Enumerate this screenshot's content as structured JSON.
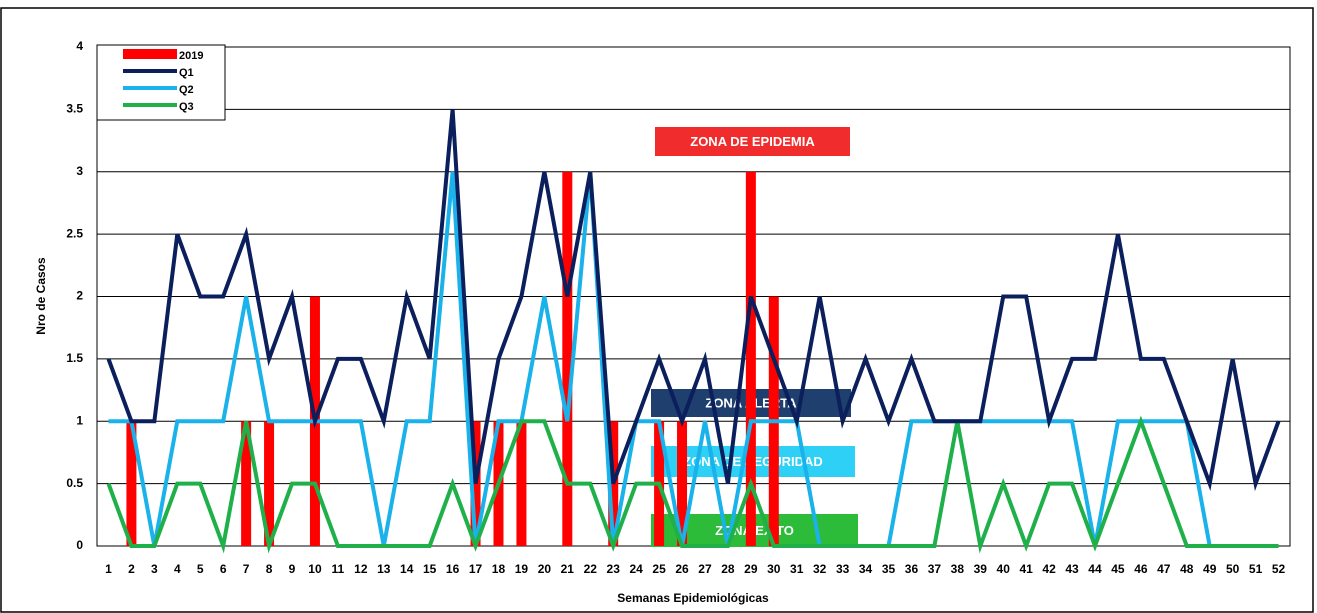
{
  "chart_data": {
    "type": "bar-line",
    "ylabel": "Nro de Casos",
    "xlabel": "Semanas Epidemiológicas",
    "categories": [
      "1",
      "2",
      "3",
      "4",
      "5",
      "6",
      "7",
      "8",
      "9",
      "10",
      "11",
      "12",
      "13",
      "14",
      "15",
      "16",
      "17",
      "18",
      "19",
      "20",
      "21",
      "22",
      "23",
      "24",
      "25",
      "26",
      "27",
      "28",
      "29",
      "30",
      "31",
      "32",
      "33",
      "34",
      "35",
      "36",
      "37",
      "38",
      "39",
      "40",
      "41",
      "42",
      "43",
      "44",
      "45",
      "46",
      "47",
      "48",
      "49",
      "50",
      "51",
      "52"
    ],
    "ylim": [
      0,
      4
    ],
    "yticks": [
      0,
      0.5,
      1,
      1.5,
      2,
      2.5,
      3,
      3.5,
      4
    ],
    "grid": true,
    "legend": "top-left",
    "series": [
      {
        "name": "2019",
        "kind": "bar",
        "color": "#ff0000",
        "values": [
          0,
          1,
          0,
          0,
          0,
          0,
          1,
          1,
          0,
          2,
          0,
          0,
          0,
          0,
          0,
          0,
          1,
          1,
          1,
          0,
          3,
          0,
          1,
          0,
          1,
          1,
          0,
          0,
          3,
          2,
          0,
          0,
          0,
          0,
          0,
          0,
          0,
          0,
          0,
          0,
          0,
          0,
          0,
          0,
          0,
          0,
          0,
          0,
          0,
          0,
          0,
          0
        ]
      },
      {
        "name": "Q1",
        "kind": "line",
        "color": "#0b1f5c",
        "values": [
          1.5,
          1,
          1,
          2.5,
          2,
          2,
          2.5,
          1.5,
          2,
          1,
          1.5,
          1.5,
          1,
          2,
          1.5,
          3.5,
          0.5,
          1.5,
          2,
          3,
          2,
          3,
          0.5,
          1,
          1.5,
          1,
          1.5,
          0.5,
          2,
          1.5,
          1,
          2,
          1,
          1.5,
          1,
          1.5,
          1,
          1,
          1,
          2,
          2,
          1,
          1.5,
          1.5,
          2.5,
          1.5,
          1.5,
          1,
          0.5,
          1.5,
          0.5,
          1
        ]
      },
      {
        "name": "Q2",
        "kind": "line",
        "color": "#1ab2ea",
        "values": [
          1,
          1,
          0,
          1,
          1,
          1,
          2,
          1,
          1,
          1,
          1,
          1,
          0,
          1,
          1,
          3,
          0,
          1,
          1,
          2,
          1,
          3,
          0,
          1,
          1,
          0,
          1,
          0,
          1,
          1,
          1,
          0,
          0,
          0,
          0,
          1,
          1,
          1,
          1,
          1,
          1,
          1,
          1,
          0,
          1,
          1,
          1,
          1,
          0,
          0,
          0,
          0
        ]
      },
      {
        "name": "Q3",
        "kind": "line",
        "color": "#1fb04a",
        "values": [
          0.5,
          0,
          0,
          0.5,
          0.5,
          0,
          1,
          0,
          0.5,
          0.5,
          0,
          0,
          0,
          0,
          0,
          0.5,
          0,
          0.5,
          1,
          1,
          0.5,
          0.5,
          0,
          0.5,
          0.5,
          0,
          0,
          0,
          0.5,
          0,
          0,
          0,
          0,
          0,
          0,
          0,
          0,
          1,
          0,
          0.5,
          0,
          0.5,
          0.5,
          0,
          0.5,
          1,
          0.5,
          0,
          0,
          0,
          0,
          0
        ]
      }
    ],
    "annotations": [
      {
        "text": "ZONA DE EPIDEMIA",
        "color": "#f12c2c"
      },
      {
        "text": "ZONA  ALERTA",
        "color": "#1f3f6e"
      },
      {
        "text": "ZONA DE SEGURIDAD",
        "color": "#2ed0f5"
      },
      {
        "text": "ZONA  EXITO",
        "color": "#2dbb3a"
      }
    ]
  }
}
